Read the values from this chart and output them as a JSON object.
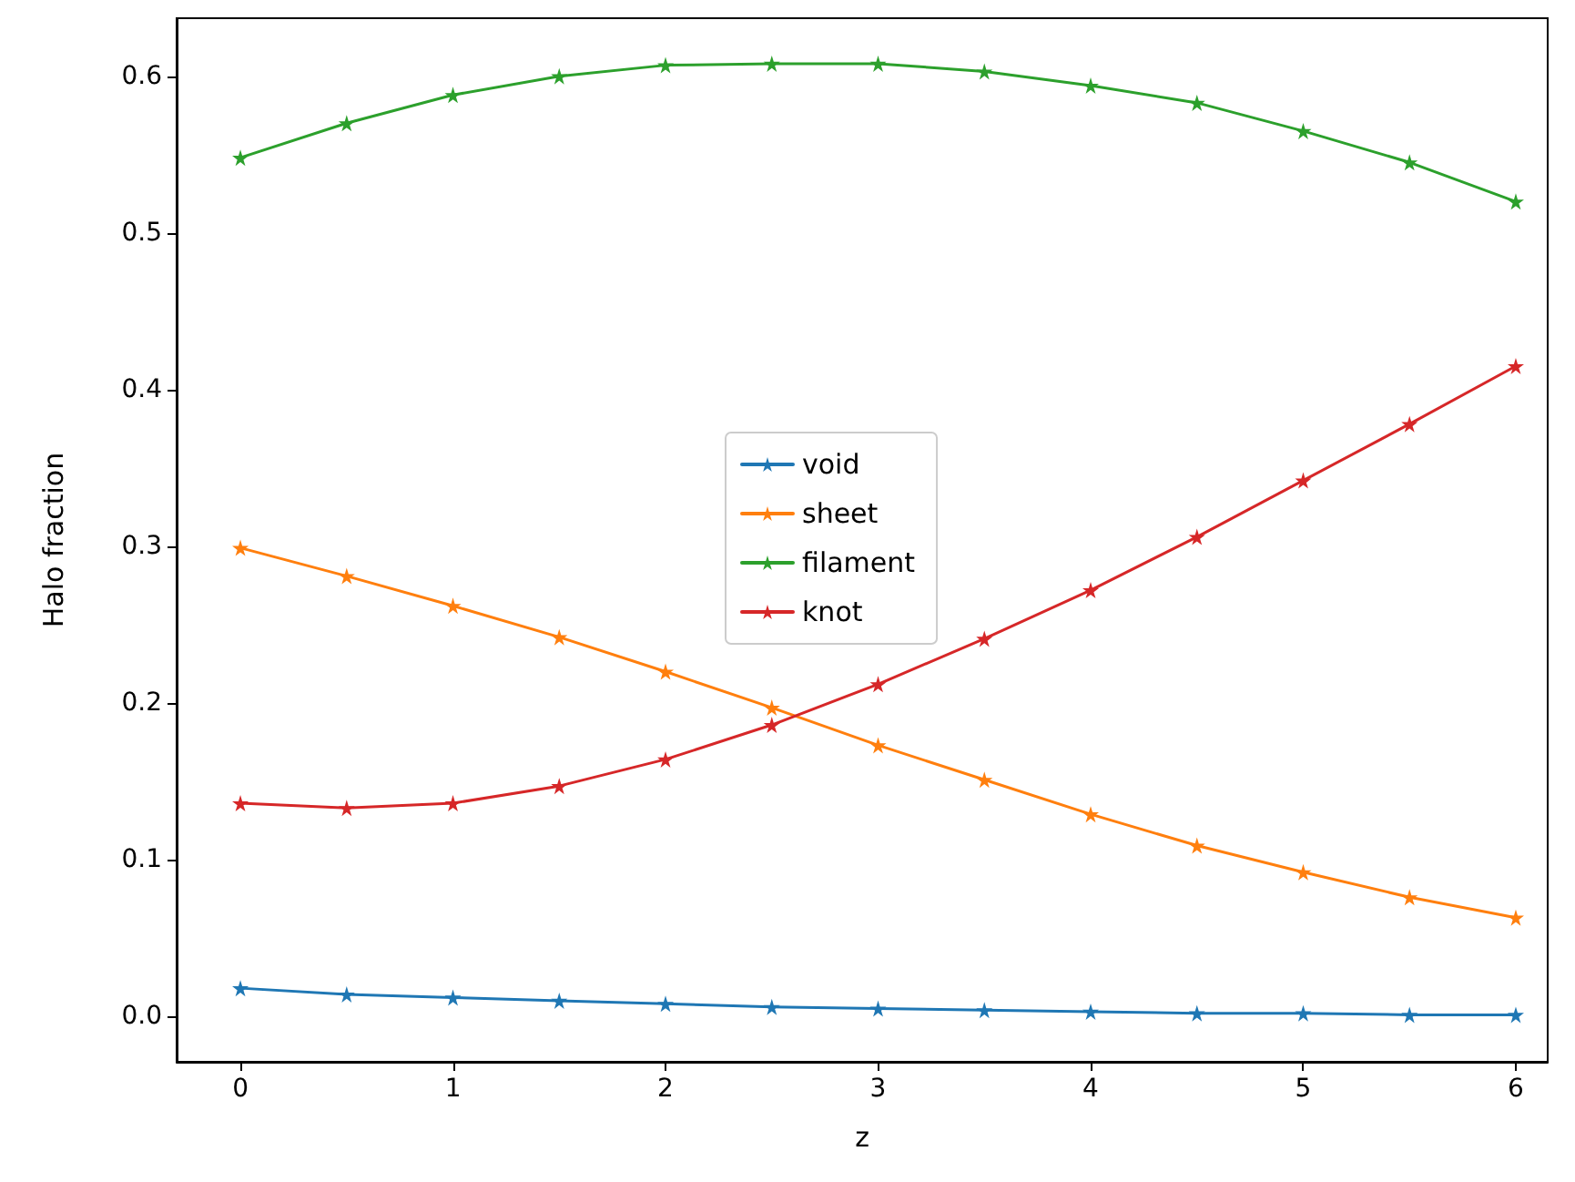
{
  "chart_data": {
    "type": "line",
    "xlabel": "z",
    "ylabel": "Halo fraction",
    "x": [
      0,
      0.5,
      1,
      1.5,
      2,
      2.5,
      3,
      3.5,
      4,
      4.5,
      5,
      5.5,
      6
    ],
    "series": [
      {
        "name": "void",
        "color": "#1f77b4",
        "values": [
          0.018,
          0.014,
          0.012,
          0.01,
          0.008,
          0.006,
          0.005,
          0.004,
          0.003,
          0.002,
          0.002,
          0.001,
          0.001
        ]
      },
      {
        "name": "sheet",
        "color": "#ff7f0e",
        "values": [
          0.299,
          0.281,
          0.262,
          0.242,
          0.22,
          0.197,
          0.173,
          0.151,
          0.129,
          0.109,
          0.092,
          0.076,
          0.063
        ]
      },
      {
        "name": "filament",
        "color": "#2ca02c",
        "values": [
          0.548,
          0.57,
          0.588,
          0.6,
          0.607,
          0.608,
          0.608,
          0.603,
          0.594,
          0.583,
          0.565,
          0.545,
          0.52
        ]
      },
      {
        "name": "knot",
        "color": "#d62728",
        "values": [
          0.136,
          0.133,
          0.136,
          0.147,
          0.164,
          0.186,
          0.212,
          0.241,
          0.272,
          0.306,
          0.342,
          0.378,
          0.415
        ]
      }
    ],
    "xlim": [
      -0.3,
      6.15
    ],
    "ylim": [
      -0.029,
      0.637
    ],
    "xticks": [
      0,
      1,
      2,
      3,
      4,
      5,
      6
    ],
    "yticks": [
      {
        "value": 0,
        "label": "0.0"
      },
      {
        "value": 0.1,
        "label": "0.1"
      },
      {
        "value": 0.2,
        "label": "0.2"
      },
      {
        "value": 0.3,
        "label": "0.3"
      },
      {
        "value": 0.4,
        "label": "0.4"
      },
      {
        "value": 0.5,
        "label": "0.5"
      },
      {
        "value": 0.6,
        "label": "0.6"
      }
    ],
    "legend": "center",
    "marker": "star",
    "line_style": "solid",
    "grid": false
  }
}
